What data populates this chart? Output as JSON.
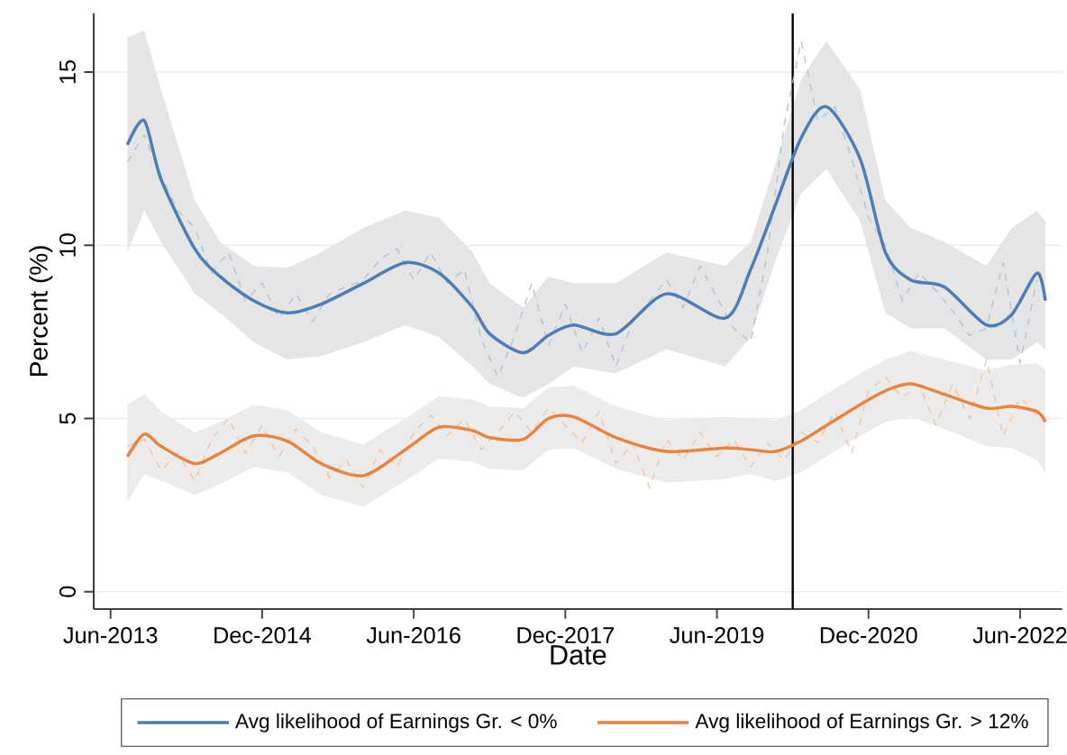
{
  "chart_data": {
    "type": "line",
    "xlabel": "Date",
    "ylabel": "Percent (%)",
    "xlim": [
      "2013-04",
      "2022-11"
    ],
    "ylim": [
      -0.5,
      16.7
    ],
    "xticks": [
      {
        "value": "2013-06",
        "label": "Jun-2013"
      },
      {
        "value": "2014-12",
        "label": "Dec-2014"
      },
      {
        "value": "2016-06",
        "label": "Jun-2016"
      },
      {
        "value": "2017-12",
        "label": "Dec-2017"
      },
      {
        "value": "2019-06",
        "label": "Jun-2019"
      },
      {
        "value": "2020-12",
        "label": "Dec-2020"
      },
      {
        "value": "2022-06",
        "label": "Jun-2022"
      }
    ],
    "yticks": [
      0,
      5,
      10,
      15
    ],
    "grid": "y",
    "legend": "bottom",
    "ref_lines": [
      {
        "axis": "x",
        "value": "2020-03",
        "color": "#000000"
      }
    ],
    "series": [
      {
        "color": "#a9c1dd",
        "line_style": "dashed",
        "x": [
          "2013-08",
          "2013-10",
          "2013-12",
          "2014-02",
          "2014-04",
          "2014-06",
          "2014-08",
          "2014-10",
          "2014-12",
          "2015-02",
          "2015-04",
          "2015-06",
          "2015-08",
          "2015-10",
          "2015-12",
          "2016-02",
          "2016-04",
          "2016-06",
          "2016-08",
          "2016-10",
          "2016-12",
          "2017-02",
          "2017-04",
          "2017-06",
          "2017-08",
          "2017-10",
          "2017-12",
          "2018-02",
          "2018-04",
          "2018-06",
          "2018-08",
          "2018-10",
          "2018-12",
          "2019-02",
          "2019-04",
          "2019-06",
          "2019-08",
          "2019-10",
          "2019-12",
          "2020-02",
          "2020-04",
          "2020-06",
          "2020-08",
          "2020-10",
          "2020-12",
          "2021-02",
          "2021-04",
          "2021-06",
          "2021-08",
          "2021-10",
          "2021-12",
          "2022-02",
          "2022-04",
          "2022-06",
          "2022-08"
        ],
        "values": [
          12.4,
          13.2,
          12.0,
          11.0,
          10.5,
          9.2,
          9.8,
          8.4,
          8.9,
          7.9,
          8.6,
          7.8,
          8.6,
          8.8,
          9.0,
          9.6,
          9.9,
          9.0,
          9.8,
          8.9,
          9.3,
          7.3,
          6.2,
          7.4,
          8.9,
          7.1,
          8.3,
          6.9,
          7.9,
          6.5,
          7.8,
          8.4,
          9.0,
          8.2,
          9.4,
          8.5,
          7.6,
          7.2,
          9.8,
          13.5,
          15.9,
          13.6,
          14.0,
          12.5,
          10.8,
          10.0,
          8.4,
          9.2,
          8.7,
          8.1,
          7.4,
          7.6,
          9.5,
          6.6,
          9.0
        ]
      },
      {
        "color": "#f2c29d",
        "line_style": "dashed",
        "x": [
          "2013-08",
          "2013-10",
          "2013-12",
          "2014-02",
          "2014-04",
          "2014-06",
          "2014-08",
          "2014-10",
          "2014-12",
          "2015-02",
          "2015-04",
          "2015-06",
          "2015-08",
          "2015-10",
          "2015-12",
          "2016-02",
          "2016-04",
          "2016-06",
          "2016-08",
          "2016-10",
          "2016-12",
          "2017-02",
          "2017-04",
          "2017-06",
          "2017-08",
          "2017-10",
          "2017-12",
          "2018-02",
          "2018-04",
          "2018-06",
          "2018-08",
          "2018-10",
          "2018-12",
          "2019-02",
          "2019-04",
          "2019-06",
          "2019-08",
          "2019-10",
          "2019-12",
          "2020-02",
          "2020-04",
          "2020-06",
          "2020-08",
          "2020-10",
          "2020-12",
          "2021-02",
          "2021-04",
          "2021-06",
          "2021-08",
          "2021-10",
          "2021-12",
          "2022-02",
          "2022-04",
          "2022-06",
          "2022-08"
        ],
        "values": [
          4.2,
          4.4,
          3.5,
          4.0,
          3.2,
          4.4,
          5.0,
          4.0,
          4.8,
          3.9,
          4.7,
          4.2,
          3.3,
          3.8,
          3.0,
          4.1,
          3.6,
          4.6,
          5.1,
          4.5,
          5.0,
          4.1,
          4.6,
          5.2,
          4.6,
          5.3,
          4.8,
          4.3,
          5.2,
          3.7,
          4.3,
          3.0,
          4.4,
          3.8,
          4.6,
          3.9,
          4.4,
          3.6,
          4.3,
          3.8,
          4.6,
          4.3,
          5.2,
          4.0,
          5.8,
          6.2,
          5.6,
          6.0,
          4.8,
          6.0,
          5.0,
          6.7,
          4.5,
          5.6,
          5.1
        ]
      },
      {
        "name": "Avg likelihood of Earnings Gr. < 0%",
        "color": "#4c7db4",
        "line_style": "solid",
        "x": [
          "2013-08",
          "2013-10",
          "2013-12",
          "2014-04",
          "2014-07",
          "2014-11",
          "2015-03",
          "2015-07",
          "2015-12",
          "2016-05",
          "2016-09",
          "2017-01",
          "2017-03",
          "2017-07",
          "2017-10",
          "2018-01",
          "2018-06",
          "2018-12",
          "2019-07",
          "2019-10",
          "2020-01",
          "2020-04",
          "2020-07",
          "2020-11",
          "2021-02",
          "2021-05",
          "2021-09",
          "2022-02",
          "2022-05",
          "2022-08",
          "2022-09"
        ],
        "values": [
          12.9,
          13.6,
          11.9,
          9.9,
          9.1,
          8.4,
          8.05,
          8.3,
          8.9,
          9.5,
          9.2,
          8.2,
          7.45,
          6.9,
          7.4,
          7.7,
          7.45,
          8.6,
          7.9,
          9.3,
          11.2,
          13.1,
          14.0,
          12.5,
          9.8,
          9.0,
          8.8,
          7.7,
          8.0,
          9.2,
          8.4
        ],
        "lower": [
          9.8,
          11.0,
          10.1,
          8.6,
          8.05,
          7.2,
          6.7,
          6.8,
          7.2,
          7.7,
          7.35,
          6.5,
          6.0,
          5.6,
          6.0,
          6.5,
          6.3,
          7.0,
          6.5,
          7.35,
          9.6,
          11.5,
          12.2,
          10.7,
          8.05,
          7.6,
          7.6,
          6.7,
          6.7,
          7.2,
          7.0
        ],
        "upper": [
          16.0,
          16.2,
          14.5,
          11.3,
          10.1,
          9.4,
          9.35,
          9.8,
          10.5,
          11.0,
          10.8,
          9.8,
          8.9,
          8.2,
          9.1,
          8.9,
          8.9,
          9.8,
          9.4,
          10.1,
          12.4,
          14.8,
          15.9,
          14.5,
          11.3,
          10.5,
          10.1,
          9.4,
          10.5,
          11.0,
          10.7
        ]
      },
      {
        "name": "Avg likelihood of Earnings Gr. > 12%",
        "color": "#e8843e",
        "line_style": "solid",
        "x": [
          "2013-08",
          "2013-10",
          "2013-12",
          "2014-04",
          "2014-07",
          "2014-11",
          "2015-03",
          "2015-07",
          "2015-12",
          "2016-05",
          "2016-09",
          "2017-01",
          "2017-03",
          "2017-07",
          "2017-10",
          "2018-01",
          "2018-06",
          "2018-12",
          "2019-07",
          "2019-10",
          "2020-01",
          "2020-04",
          "2020-07",
          "2020-11",
          "2021-02",
          "2021-05",
          "2021-09",
          "2022-02",
          "2022-05",
          "2022-08",
          "2022-09"
        ],
        "values": [
          3.9,
          4.55,
          4.2,
          3.7,
          4.0,
          4.5,
          4.35,
          3.7,
          3.35,
          4.1,
          4.75,
          4.65,
          4.45,
          4.4,
          5.0,
          5.05,
          4.45,
          4.05,
          4.15,
          4.1,
          4.05,
          4.35,
          4.8,
          5.4,
          5.8,
          6.0,
          5.7,
          5.3,
          5.35,
          5.2,
          4.9
        ],
        "lower": [
          2.6,
          3.4,
          3.2,
          2.8,
          3.1,
          3.6,
          3.45,
          2.8,
          2.45,
          3.2,
          3.85,
          3.75,
          3.55,
          3.5,
          4.1,
          4.15,
          3.55,
          3.15,
          3.25,
          3.4,
          3.2,
          3.45,
          3.9,
          4.5,
          4.9,
          5.05,
          4.7,
          4.2,
          4.15,
          3.8,
          3.4
        ],
        "upper": [
          5.4,
          5.7,
          5.2,
          4.6,
          4.9,
          5.4,
          5.25,
          4.6,
          4.25,
          5.0,
          5.65,
          5.55,
          5.35,
          5.3,
          5.9,
          5.95,
          5.35,
          4.95,
          5.05,
          5.0,
          4.95,
          5.25,
          5.7,
          6.3,
          6.7,
          6.95,
          6.7,
          6.4,
          6.55,
          6.6,
          6.4
        ]
      }
    ]
  }
}
